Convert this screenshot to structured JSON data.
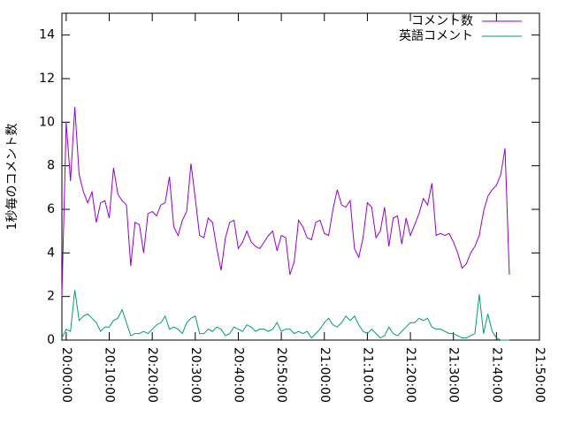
{
  "chart_data": {
    "type": "line",
    "ylabel": "1秒毎のコメント数",
    "x": [
      "19:59:00",
      "20:00:00",
      "20:01:00",
      "20:02:00",
      "20:03:00",
      "20:04:00",
      "20:05:00",
      "20:06:00",
      "20:07:00",
      "20:08:00",
      "20:09:00",
      "20:10:00",
      "20:11:00",
      "20:12:00",
      "20:13:00",
      "20:14:00",
      "20:15:00",
      "20:16:00",
      "20:17:00",
      "20:18:00",
      "20:19:00",
      "20:20:00",
      "20:21:00",
      "20:22:00",
      "20:23:00",
      "20:24:00",
      "20:25:00",
      "20:26:00",
      "20:27:00",
      "20:28:00",
      "20:29:00",
      "20:30:00",
      "20:31:00",
      "20:32:00",
      "20:33:00",
      "20:34:00",
      "20:35:00",
      "20:36:00",
      "20:37:00",
      "20:38:00",
      "20:39:00",
      "20:40:00",
      "20:41:00",
      "20:42:00",
      "20:43:00",
      "20:44:00",
      "20:45:00",
      "20:46:00",
      "20:47:00",
      "20:48:00",
      "20:49:00",
      "20:50:00",
      "20:51:00",
      "20:52:00",
      "20:53:00",
      "20:54:00",
      "20:55:00",
      "20:56:00",
      "20:57:00",
      "20:58:00",
      "20:59:00",
      "21:00:00",
      "21:01:00",
      "21:02:00",
      "21:03:00",
      "21:04:00",
      "21:05:00",
      "21:06:00",
      "21:07:00",
      "21:08:00",
      "21:09:00",
      "21:10:00",
      "21:11:00",
      "21:12:00",
      "21:13:00",
      "21:14:00",
      "21:15:00",
      "21:16:00",
      "21:17:00",
      "21:18:00",
      "21:19:00",
      "21:20:00",
      "21:21:00",
      "21:22:00",
      "21:23:00",
      "21:24:00",
      "21:25:00",
      "21:26:00",
      "21:27:00",
      "21:28:00",
      "21:29:00",
      "21:30:00",
      "21:31:00",
      "21:32:00",
      "21:33:00",
      "21:34:00",
      "21:35:00",
      "21:36:00",
      "21:37:00",
      "21:38:00",
      "21:39:00",
      "21:40:00",
      "21:41:00",
      "21:42:00",
      "21:43:00"
    ],
    "series": [
      {
        "name": "コメント数",
        "color": "#9400d3",
        "values": [
          2,
          10,
          7.3,
          10.7,
          7.6,
          6.8,
          6.3,
          6.8,
          5.4,
          6.3,
          6.4,
          5.6,
          7.9,
          6.7,
          6.4,
          6.2,
          3.4,
          5.4,
          5.3,
          4.0,
          5.8,
          5.9,
          5.7,
          6.2,
          6.3,
          7.5,
          5.2,
          4.8,
          5.5,
          5.9,
          8.1,
          6.5,
          4.8,
          4.7,
          5.6,
          5.4,
          4.2,
          3.2,
          4.7,
          5.4,
          5.5,
          4.2,
          4.5,
          5.0,
          4.5,
          4.3,
          4.2,
          4.5,
          4.8,
          5.0,
          4.1,
          4.8,
          4.7,
          3.0,
          3.6,
          5.5,
          5.2,
          4.7,
          4.6,
          5.4,
          5.5,
          4.9,
          4.8,
          6.0,
          6.9,
          6.2,
          6.1,
          6.4,
          4.2,
          3.8,
          4.7,
          6.3,
          6.1,
          4.7,
          5.0,
          6.1,
          4.3,
          5.6,
          5.7,
          4.4,
          5.6,
          4.8,
          5.3,
          5.8,
          6.5,
          6.2,
          7.2,
          4.8,
          4.9,
          4.8,
          4.9,
          4.5,
          4.0,
          3.3,
          3.5,
          4.0,
          4.3,
          4.8,
          5.9,
          6.6,
          6.9,
          7.1,
          7.6,
          8.8,
          3.0
        ]
      },
      {
        "name": "英語コメント",
        "color": "#009e73",
        "values": [
          0.1,
          0.5,
          0.4,
          2.3,
          0.9,
          1.1,
          1.2,
          1.0,
          0.8,
          0.4,
          0.6,
          0.6,
          0.9,
          1.0,
          1.4,
          0.8,
          0.2,
          0.3,
          0.3,
          0.4,
          0.3,
          0.5,
          0.7,
          0.8,
          1.1,
          0.5,
          0.6,
          0.5,
          0.3,
          0.8,
          1.0,
          1.1,
          0.3,
          0.3,
          0.5,
          0.4,
          0.6,
          0.5,
          0.2,
          0.3,
          0.6,
          0.5,
          0.4,
          0.7,
          0.6,
          0.4,
          0.5,
          0.5,
          0.4,
          0.5,
          0.8,
          0.4,
          0.5,
          0.5,
          0.3,
          0.4,
          0.3,
          0.4,
          0.1,
          0.3,
          0.5,
          0.8,
          1.0,
          0.7,
          0.6,
          0.8,
          1.1,
          0.9,
          1.1,
          0.7,
          0.4,
          0.3,
          0.5,
          0.3,
          0.1,
          0.2,
          0.6,
          0.3,
          0.2,
          0.4,
          0.6,
          0.8,
          0.8,
          1.0,
          0.9,
          1.0,
          0.6,
          0.5,
          0.5,
          0.4,
          0.3,
          0.3,
          0.2,
          0.1,
          0.1,
          0.2,
          0.3,
          2.1,
          0.3,
          1.2,
          0.4,
          0.1,
          0,
          0,
          0
        ]
      }
    ],
    "xlim": [
      "19:59:00",
      "21:50:00"
    ],
    "xticks": [
      "20:00:00",
      "20:10:00",
      "20:20:00",
      "20:30:00",
      "20:40:00",
      "20:50:00",
      "21:00:00",
      "21:10:00",
      "21:20:00",
      "21:30:00",
      "21:40:00",
      "21:50:00"
    ],
    "ylim": [
      0,
      15
    ],
    "yticks": [
      0,
      2,
      4,
      6,
      8,
      10,
      12,
      14
    ],
    "legend": "top-right"
  }
}
